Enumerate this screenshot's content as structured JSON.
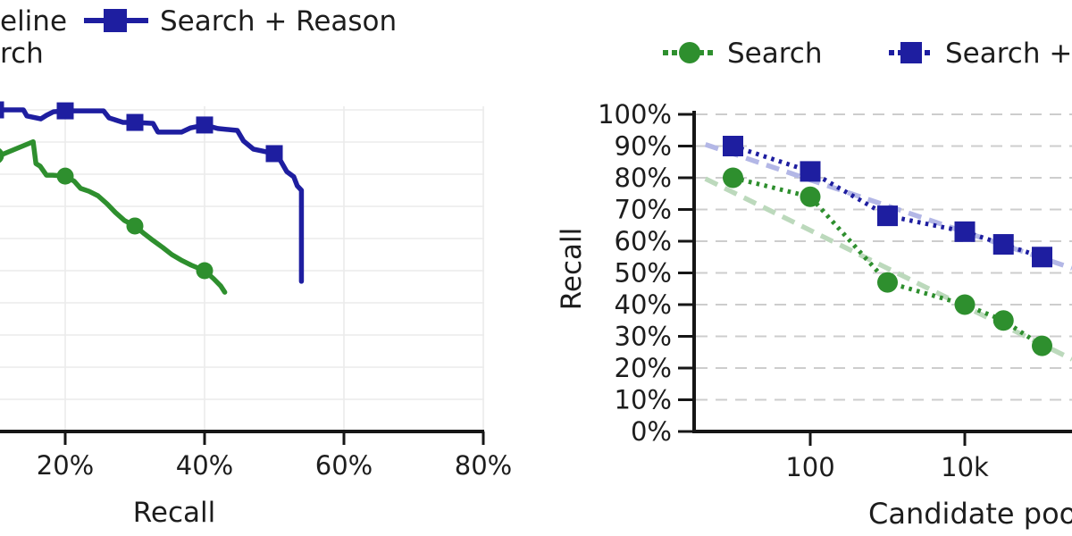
{
  "figure": {
    "background": "#ffffff",
    "note_left_edge": "left side of figure cropped in screenshot",
    "note_right_edge": "right side of figure cropped in screenshot"
  },
  "colors": {
    "navy": "#1e1ea0",
    "green": "#2e8f2e",
    "trend_navy_light": "#b3b7e6",
    "trend_green_light": "#bcd9bc",
    "grid_left": "#ebebeb",
    "grid_right": "#cdcdcd",
    "axis": "#161616",
    "text": "#1d1d1d"
  },
  "left_chart": {
    "legend": {
      "baseline_fragment": "eline",
      "search_reason_label": "Search + Reason",
      "search_fragment": "rch"
    },
    "xlabel": "Recall"
  },
  "right_chart": {
    "legend": {
      "search_label": "Search",
      "search_reason_fragment": "Search +"
    },
    "ylabel": "Recall",
    "xlabel_fragment": "Candidate poo"
  },
  "chart_data": [
    {
      "type": "line",
      "title": "",
      "xlabel": "Recall",
      "ylabel": "",
      "x_tick_values": [
        20,
        40,
        60,
        80
      ],
      "x_ticks": [
        "20%",
        "40%",
        "60%",
        "80%"
      ],
      "xlim_visible": [
        10.6,
        80
      ],
      "ylim": [
        0,
        100
      ],
      "grid": true,
      "legend_position": "top-left (partially cropped)",
      "series": [
        {
          "key": "search-reason",
          "name": "Search + Reason",
          "color": "#1e1ea0",
          "marker": "square",
          "line_style": "solid",
          "marker_points": [
            [
              10,
              100
            ],
            [
              20,
              99.7
            ],
            [
              30,
              96.1
            ],
            [
              40,
              95.3
            ],
            [
              50,
              86.4
            ]
          ],
          "points": [
            [
              10.6,
              100
            ],
            [
              14,
              100
            ],
            [
              14.5,
              98.1
            ],
            [
              16.5,
              97.2
            ],
            [
              17.3,
              98.3
            ],
            [
              18.3,
              99.4
            ],
            [
              20,
              99.7
            ],
            [
              25.5,
              99.7
            ],
            [
              26.3,
              97.5
            ],
            [
              28.3,
              96.1
            ],
            [
              30,
              96.1
            ],
            [
              32.6,
              95.8
            ],
            [
              33.3,
              93.1
            ],
            [
              36.7,
              93.1
            ],
            [
              38,
              94.4
            ],
            [
              40,
              95.3
            ],
            [
              41.9,
              94.2
            ],
            [
              44.7,
              93.6
            ],
            [
              45.6,
              90.3
            ],
            [
              47,
              87.8
            ],
            [
              48.3,
              87.2
            ],
            [
              50,
              86.4
            ],
            [
              50.9,
              84.2
            ],
            [
              51.8,
              80.8
            ],
            [
              52.8,
              79.2
            ],
            [
              53.3,
              76.4
            ],
            [
              53.9,
              75
            ],
            [
              53.9,
              46.7
            ]
          ]
        },
        {
          "key": "search",
          "name": "Search",
          "color": "#2e8f2e",
          "marker": "circle",
          "line_style": "solid",
          "marker_points": [
            [
              10,
              85.8
            ],
            [
              20,
              79.4
            ],
            [
              30,
              63.9
            ],
            [
              40,
              50
            ]
          ],
          "points": [
            [
              10.6,
              85.8
            ],
            [
              15.4,
              90.1
            ],
            [
              15.8,
              83.3
            ],
            [
              16.4,
              82.5
            ],
            [
              17.3,
              79.7
            ],
            [
              18.2,
              79.7
            ],
            [
              20,
              79.4
            ],
            [
              21.3,
              77.8
            ],
            [
              22.2,
              75.6
            ],
            [
              23.4,
              74.7
            ],
            [
              24.7,
              73.3
            ],
            [
              26,
              70.8
            ],
            [
              27.2,
              68.1
            ],
            [
              28.5,
              65.6
            ],
            [
              30,
              63.9
            ],
            [
              31.4,
              61.4
            ],
            [
              32.6,
              59.4
            ],
            [
              34,
              57.2
            ],
            [
              35.3,
              55
            ],
            [
              36.8,
              53.1
            ],
            [
              38.1,
              51.7
            ],
            [
              40,
              50
            ],
            [
              41.3,
              47.5
            ],
            [
              42.3,
              45.3
            ],
            [
              42.9,
              43.3
            ]
          ]
        }
      ]
    },
    {
      "type": "line",
      "title": "",
      "xlabel": "Candidate pool size (visible fragment: 'Candidate poo')",
      "ylabel": "Recall",
      "x_scale": "log",
      "x_ticks": [
        {
          "v": 100,
          "label": "100"
        },
        {
          "v": 10000,
          "label": "10k"
        }
      ],
      "y_tick_labels": [
        "0%",
        "10%",
        "20%",
        "30%",
        "40%",
        "50%",
        "60%",
        "70%",
        "80%",
        "90%",
        "100%"
      ],
      "ylim": [
        0,
        100
      ],
      "grid": "horizontal dashed",
      "legend_position": "top (partially cropped at right)",
      "series": [
        {
          "key": "search",
          "name": "Search",
          "color": "#2e8f2e",
          "marker": "circle",
          "line_style": "dotted",
          "x": [
            10,
            100,
            1000,
            10000,
            31623,
            100000
          ],
          "y": [
            80,
            74,
            47,
            40,
            35,
            27
          ]
        },
        {
          "key": "search-reason",
          "name": "Search + Reason",
          "color": "#1e1ea0",
          "marker": "square",
          "line_style": "dotted",
          "x": [
            10,
            100,
            1000,
            10000,
            31623,
            100000
          ],
          "y": [
            90,
            82,
            68,
            63,
            59,
            55
          ]
        }
      ],
      "trend_lines": [
        {
          "for": "search-reason",
          "color": "#b3b7e6",
          "style": "dashed",
          "points": [
            [
              4.4,
              90.5
            ],
            [
              244000,
              51.5
            ]
          ]
        },
        {
          "for": "search",
          "color": "#bcd9bc",
          "style": "dashed",
          "points": [
            [
              4.4,
              79.7
            ],
            [
              244000,
              22.8
            ]
          ]
        }
      ]
    }
  ]
}
